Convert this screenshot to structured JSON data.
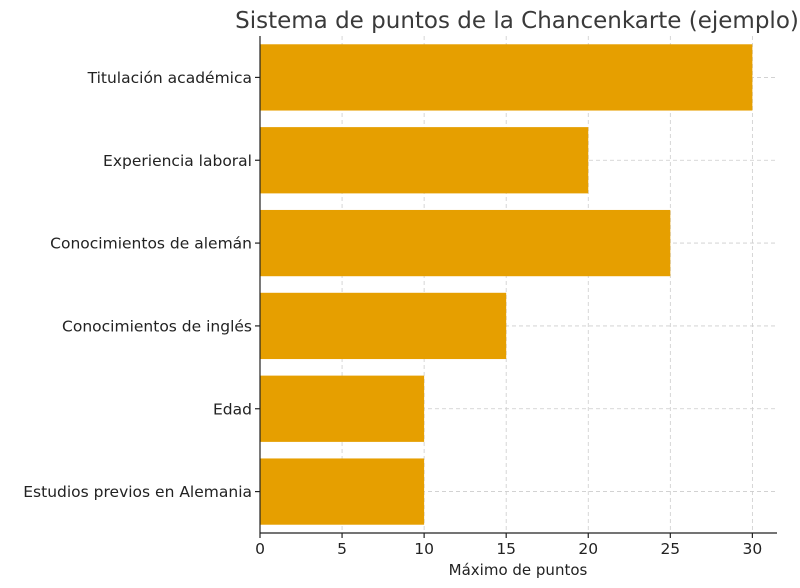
{
  "chart_data": {
    "type": "bar",
    "orientation": "horizontal",
    "title": "Sistema de puntos de la Chancenkarte (ejemplo)",
    "xlabel": "Máximo de puntos",
    "ylabel": "",
    "categories": [
      "Titulación académica",
      "Experiencia laboral",
      "Conocimientos de alemán",
      "Conocimientos de inglés",
      "Edad",
      "Estudios previos en Alemania"
    ],
    "values": [
      30,
      20,
      25,
      15,
      10,
      10
    ],
    "xlim": [
      0,
      31.5
    ],
    "xticks": [
      0,
      5,
      10,
      15,
      20,
      25,
      30
    ],
    "grid": true,
    "bar_color": "#E69F00"
  }
}
